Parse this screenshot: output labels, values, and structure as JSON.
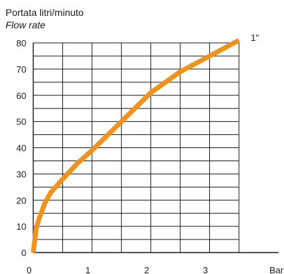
{
  "chart_data": {
    "type": "line",
    "title": "",
    "ylabel": "Portata litri/minuto",
    "ylabel_italic": "Flow rate",
    "xlabel": "Bar",
    "xlim": [
      0,
      3.5
    ],
    "ylim": [
      0,
      80
    ],
    "x_ticks": [
      "0",
      "1",
      "2",
      "3"
    ],
    "y_ticks": [
      "0",
      "10",
      "20",
      "30",
      "40",
      "50",
      "60",
      "70",
      "80"
    ],
    "grid": true,
    "series": [
      {
        "name": "1\"",
        "color": "#f0921e",
        "x": [
          0.0,
          0.05,
          0.1,
          0.2,
          0.3,
          0.5,
          0.75,
          1.0,
          1.5,
          2.0,
          2.5,
          3.0,
          3.5
        ],
        "y": [
          0,
          9,
          13,
          19,
          23,
          28,
          34,
          39,
          50,
          61,
          69,
          75,
          81
        ]
      }
    ]
  }
}
